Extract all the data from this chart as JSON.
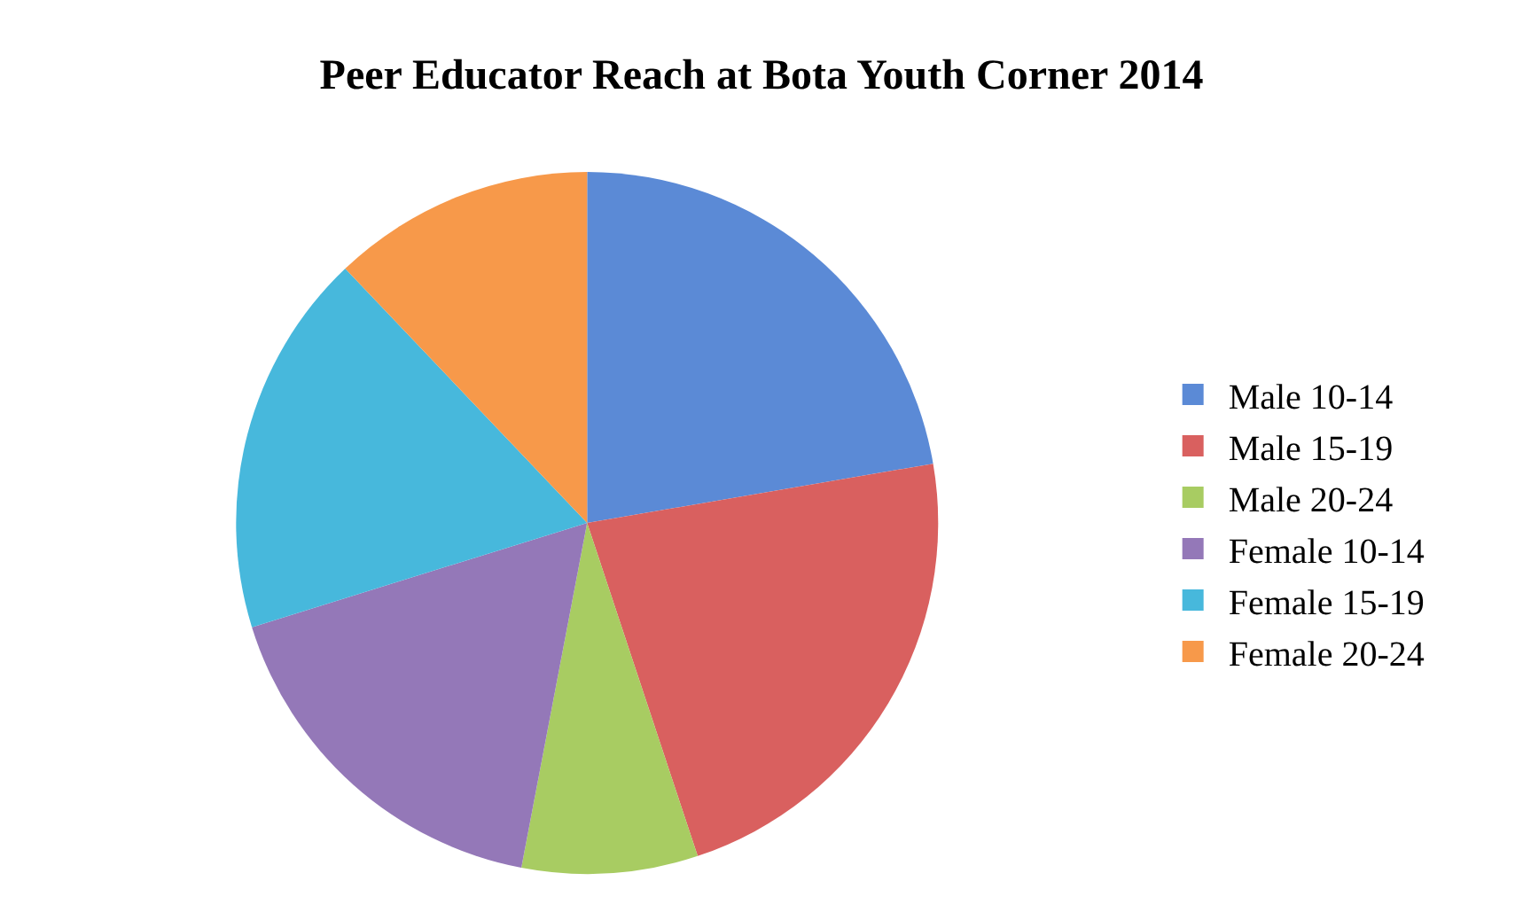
{
  "chart_data": {
    "type": "pie",
    "title": "Peer Educator Reach at Bota Youth Corner 2014",
    "categories": [
      "Male 10-14",
      "Male 15-19",
      "Male 20-24",
      "Female 10-14",
      "Female 15-19",
      "Female 20-24"
    ],
    "values": [
      22.3,
      22.6,
      8.1,
      17.2,
      17.7,
      12.1
    ],
    "colors": [
      "#5b8ad6",
      "#d9605f",
      "#a8cc62",
      "#9478b8",
      "#47b8dc",
      "#f7994a"
    ],
    "legend": "right"
  }
}
